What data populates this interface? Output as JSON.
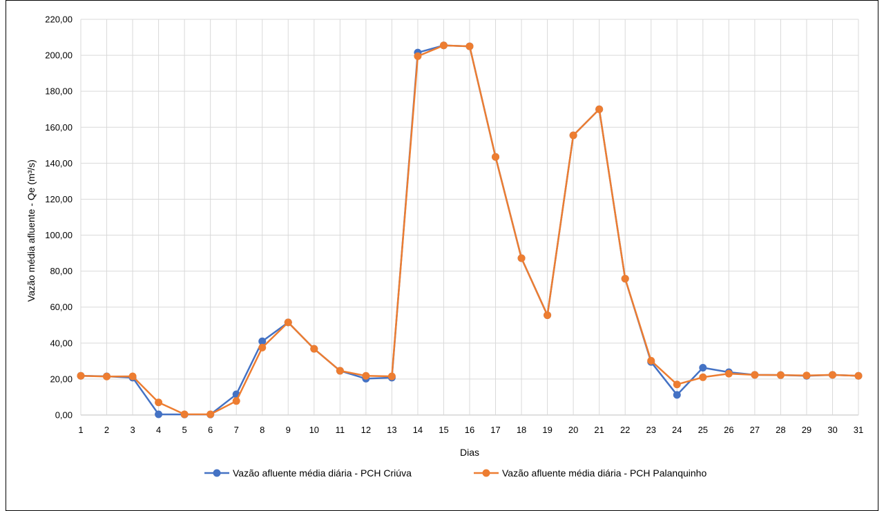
{
  "caption": "",
  "chart_data": {
    "type": "line",
    "xlabel": "Dias",
    "ylabel": "Vazão média afluente - Qe (m³/s)",
    "ylim": [
      0,
      220
    ],
    "y_ticks": [
      "0,00",
      "20,00",
      "40,00",
      "60,00",
      "80,00",
      "100,00",
      "120,00",
      "140,00",
      "160,00",
      "180,00",
      "200,00",
      "220,00"
    ],
    "categories": [
      "1",
      "2",
      "3",
      "4",
      "5",
      "6",
      "7",
      "8",
      "9",
      "10",
      "11",
      "12",
      "13",
      "14",
      "15",
      "16",
      "17",
      "18",
      "19",
      "20",
      "21",
      "22",
      "23",
      "24",
      "25",
      "26",
      "27",
      "28",
      "29",
      "30",
      "31"
    ],
    "grid": true,
    "legend_position": "bottom",
    "series": [
      {
        "name": "Vazão afluente média diária - PCH Criúva",
        "color": "#4472C4",
        "values": [
          21.8,
          21.5,
          20.8,
          0.4,
          0.3,
          0.3,
          11.5,
          41.0,
          51.5,
          36.8,
          24.6,
          20.2,
          20.8,
          201.5,
          205.5,
          205.0,
          143.5,
          87.2,
          55.5,
          155.5,
          170.0,
          75.8,
          29.5,
          11.2,
          26.3,
          23.8,
          22.3,
          22.2,
          21.8,
          22.3,
          21.8
        ]
      },
      {
        "name": "Vazão afluente média diária - PCH Palanquinho",
        "color": "#ED7D31",
        "values": [
          21.8,
          21.4,
          21.5,
          7.0,
          0.4,
          0.4,
          7.8,
          37.5,
          51.5,
          36.8,
          24.6,
          21.8,
          21.5,
          199.5,
          205.5,
          205.0,
          143.5,
          87.2,
          55.5,
          155.5,
          170.0,
          75.8,
          30.2,
          17.0,
          21.0,
          23.0,
          22.3,
          22.2,
          22.0,
          22.3,
          21.8
        ]
      }
    ]
  }
}
